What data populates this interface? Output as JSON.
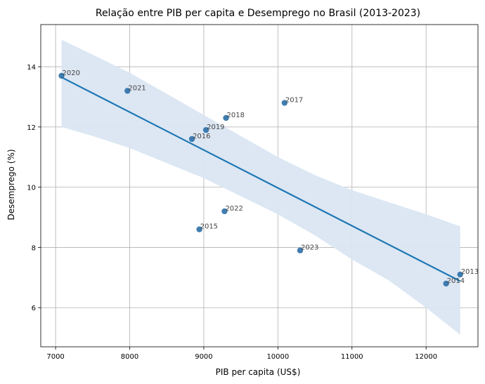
{
  "chart_data": {
    "type": "scatter",
    "title": "Relação entre PIB per capita e Desemprego no Brasil (2013-2023)",
    "xlabel": "PIB per capita (US$)",
    "ylabel": "Desemprego (%)",
    "xlim": [
      6800,
      12700
    ],
    "ylim": [
      4.7,
      15.4
    ],
    "xticks": [
      7000,
      8000,
      9000,
      10000,
      11000,
      12000
    ],
    "yticks": [
      6,
      8,
      10,
      12,
      14
    ],
    "grid": true,
    "points": [
      {
        "label": "2013",
        "x": 12460,
        "y": 7.1
      },
      {
        "label": "2014",
        "x": 12270,
        "y": 6.8
      },
      {
        "label": "2015",
        "x": 8940,
        "y": 8.6
      },
      {
        "label": "2016",
        "x": 8840,
        "y": 11.6
      },
      {
        "label": "2017",
        "x": 10090,
        "y": 12.8
      },
      {
        "label": "2018",
        "x": 9300,
        "y": 12.3
      },
      {
        "label": "2019",
        "x": 9030,
        "y": 11.9
      },
      {
        "label": "2020",
        "x": 7080,
        "y": 13.7
      },
      {
        "label": "2021",
        "x": 7970,
        "y": 13.2
      },
      {
        "label": "2022",
        "x": 9280,
        "y": 9.2
      },
      {
        "label": "2023",
        "x": 10300,
        "y": 7.9
      }
    ],
    "regression": {
      "x": [
        7080,
        12460
      ],
      "y": [
        13.65,
        6.88
      ]
    },
    "confidence_band": {
      "x": [
        7080,
        7500,
        8000,
        8500,
        9000,
        9500,
        10000,
        10500,
        11000,
        11500,
        12000,
        12460
      ],
      "upper": [
        14.9,
        14.4,
        13.8,
        13.1,
        12.4,
        11.7,
        11.0,
        10.4,
        9.9,
        9.5,
        9.1,
        8.7
      ],
      "lower": [
        12.0,
        11.7,
        11.3,
        10.8,
        10.3,
        9.7,
        9.1,
        8.4,
        7.6,
        6.9,
        6.0,
        5.1
      ]
    },
    "colors": {
      "points": "#2b6fa8",
      "line": "#1f77b4",
      "band": "#dae6f2",
      "grid": "#b0b0b0"
    }
  }
}
